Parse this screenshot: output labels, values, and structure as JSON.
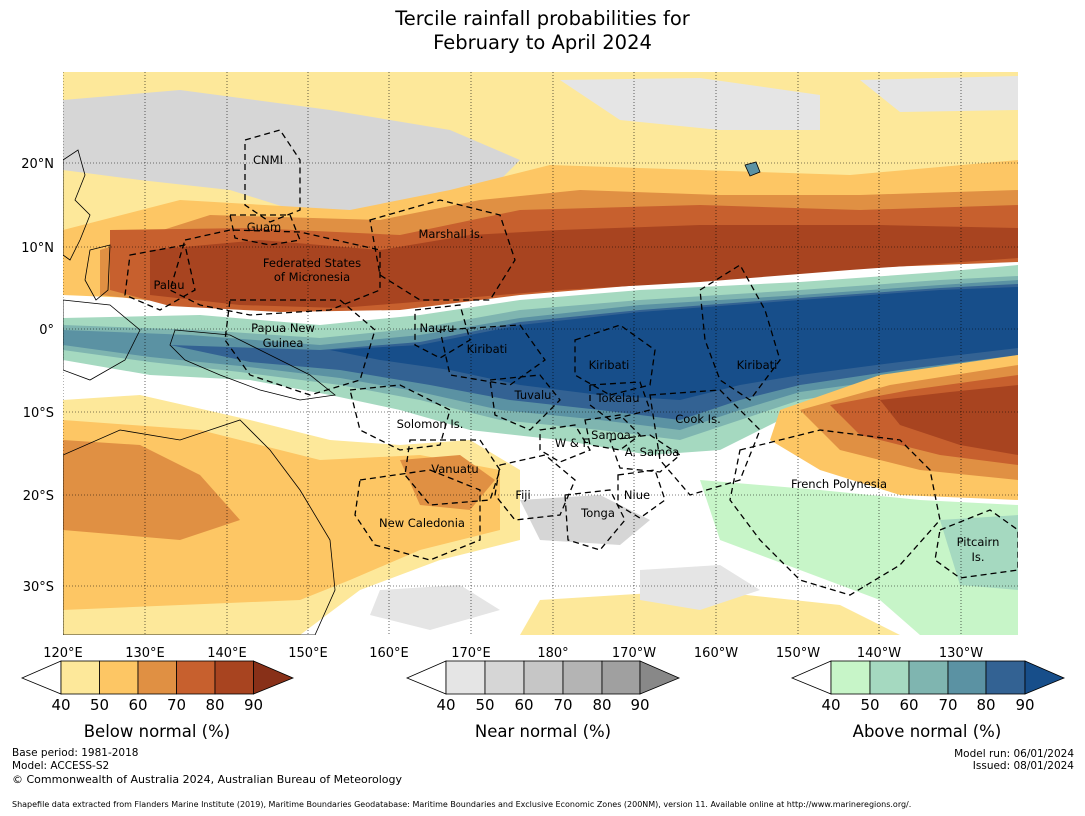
{
  "title": {
    "line1": "Tercile rainfall probabilities for",
    "line2": "February to April 2024"
  },
  "map": {
    "lat_labels": [
      "20°N",
      "10°N",
      "0°",
      "10°S",
      "20°S",
      "30°S"
    ],
    "lon_labels": [
      "120°E",
      "130°E",
      "140°E",
      "150°E",
      "160°E",
      "170°E",
      "180°",
      "170°W",
      "160°W",
      "150°W",
      "140°W",
      "130°W"
    ],
    "regions": [
      "CNMI",
      "Guam",
      "Marshall Is.",
      "Federated States",
      "of Micronesia",
      "Palau",
      "Papua New",
      "Guinea",
      "Nauru",
      "Kiribati",
      "Kiribati",
      "Kiribati",
      "Tuvalu",
      "Tokelau",
      "Cook Is.",
      "Solomon Is.",
      "Samoa",
      "W & F",
      "A. Samoa",
      "Vanuatu",
      "Fiji",
      "Niue",
      "Tonga",
      "French Polynesia",
      "New Caledonia",
      "Pitcairn",
      "Is."
    ]
  },
  "legend": {
    "below": {
      "title": "Below normal (%)",
      "ticks": [
        "40",
        "50",
        "60",
        "70",
        "80",
        "90"
      ],
      "colors": [
        "#ffffff",
        "#fde89a",
        "#fdc664",
        "#e09043",
        "#c7602e",
        "#a84420",
        "#883018"
      ]
    },
    "near": {
      "title": "Near normal (%)",
      "ticks": [
        "40",
        "50",
        "60",
        "70",
        "80",
        "90"
      ],
      "colors": [
        "#ffffff",
        "#e5e5e5",
        "#d6d6d6",
        "#c6c6c6",
        "#b4b4b4",
        "#a0a0a0",
        "#888888"
      ]
    },
    "above": {
      "title": "Above normal (%)",
      "ticks": [
        "40",
        "50",
        "60",
        "70",
        "80",
        "90"
      ],
      "colors": [
        "#ffffff",
        "#c7f5c8",
        "#a5d9c0",
        "#7fb5b0",
        "#5b92a3",
        "#336293",
        "#174e8a"
      ]
    }
  },
  "footer": {
    "base_period": "Base period: 1981-2018",
    "model": "Model: ACCESS-S2",
    "copyright": "© Commonwealth of Australia 2024, Australian Bureau of Meteorology",
    "model_run": "Model run: 06/01/2024",
    "issued": "Issued: 08/01/2024",
    "source": "Shapefile data extracted from Flanders Marine Institute (2019), Maritime Boundaries Geodatabase: Maritime Boundaries and Exclusive Economic Zones (200NM), version 11. Available online at http://www.marineregions.org/."
  }
}
